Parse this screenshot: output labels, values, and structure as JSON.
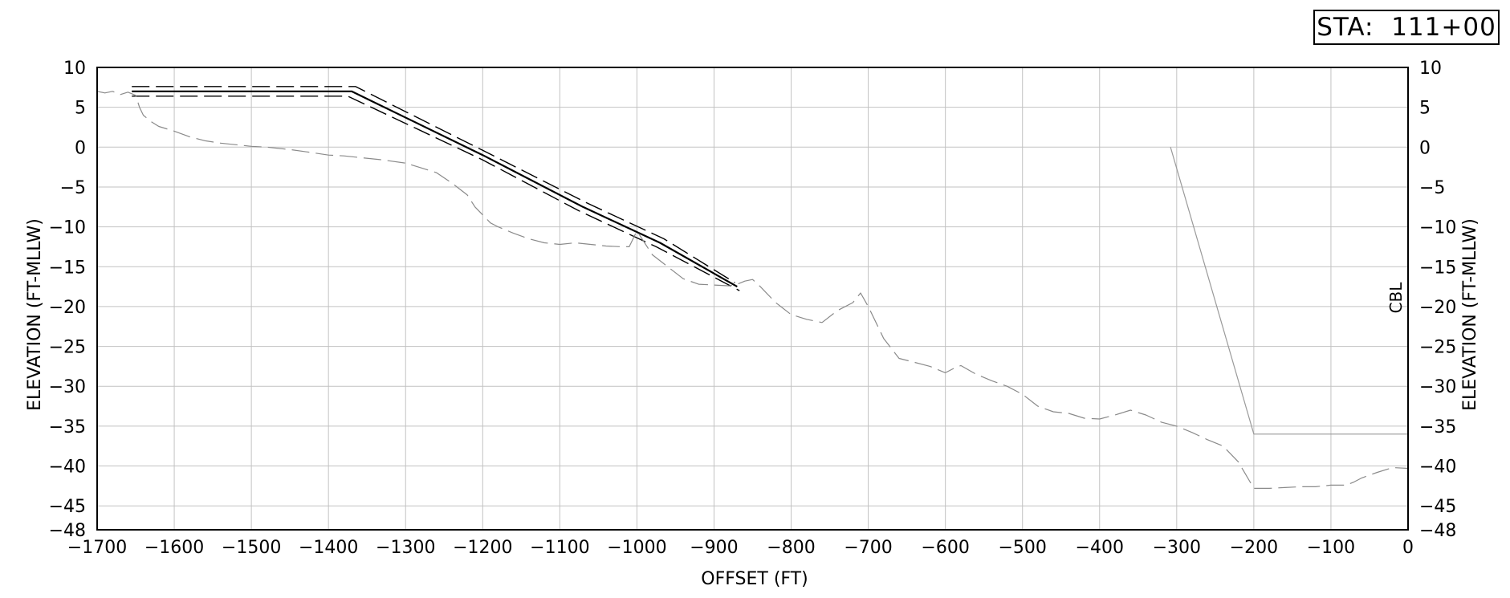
{
  "station_label": "STA:  111+00",
  "chart_data": {
    "type": "line",
    "xlabel": "OFFSET (FT)",
    "ylabel_left": "ELEVATION (FT-MLLW)",
    "ylabel_right": "ELEVATION (FT-MLLW)",
    "annotation": "CBL",
    "xlim": [
      -1700,
      0
    ],
    "ylim": [
      -48,
      10
    ],
    "x_ticks": [
      -1700,
      -1600,
      -1500,
      -1400,
      -1300,
      -1200,
      -1100,
      -1000,
      -900,
      -800,
      -700,
      -600,
      -500,
      -400,
      -300,
      -200,
      -100,
      0
    ],
    "x_tick_labels": [
      "−1700",
      "−1600",
      "−1500",
      "−1400",
      "−1300",
      "−1200",
      "−1100",
      "−1000",
      "−900",
      "−800",
      "−700",
      "−600",
      "−500",
      "−400",
      "−300",
      "−200",
      "−100",
      "0"
    ],
    "y_ticks": [
      10,
      5,
      0,
      -5,
      -10,
      -15,
      -20,
      -25,
      -30,
      -35,
      -40,
      -45,
      -48
    ],
    "y_tick_labels": [
      "10",
      "5",
      "0",
      "−5",
      "−10",
      "−15",
      "−20",
      "−25",
      "−30",
      "−35",
      "−40",
      "−45",
      "−48"
    ],
    "grid": true,
    "series": [
      {
        "style": "solid",
        "color": "#000000",
        "width": 2.2,
        "x": [
          -1655,
          -1370,
          -1200,
          -1070,
          -970,
          -870
        ],
        "y": [
          7,
          7,
          -1,
          -7.5,
          -12,
          -17.5
        ]
      },
      {
        "style": "dashed",
        "color": "#000000",
        "width": 1.4,
        "x": [
          -1655,
          -1365,
          -1200,
          -1065,
          -965,
          -873
        ],
        "y": [
          7.6,
          7.6,
          -0.4,
          -7.0,
          -11.5,
          -17.0
        ]
      },
      {
        "style": "dashed",
        "color": "#000000",
        "width": 1.4,
        "x": [
          -1655,
          -1375,
          -1200,
          -1075,
          -975,
          -867
        ],
        "y": [
          6.4,
          6.4,
          -1.6,
          -8.0,
          -12.5,
          -18.0
        ]
      },
      {
        "style": "dashed",
        "color": "#8a8a8a",
        "width": 1.2,
        "x": [
          -1700,
          -1690,
          -1680,
          -1670,
          -1660,
          -1650,
          -1645,
          -1640,
          -1630,
          -1620,
          -1600,
          -1580,
          -1560,
          -1540,
          -1520,
          -1500,
          -1480,
          -1450,
          -1420,
          -1400,
          -1380,
          -1360,
          -1330,
          -1300,
          -1280,
          -1260,
          -1240,
          -1220,
          -1210,
          -1200,
          -1190,
          -1180,
          -1160,
          -1140,
          -1120,
          -1100,
          -1080,
          -1060,
          -1040,
          -1020,
          -1010,
          -1000,
          -990,
          -980,
          -960,
          -940,
          -920,
          -900,
          -880,
          -870,
          -860,
          -850,
          -840,
          -820,
          -800,
          -780,
          -760,
          -740,
          -720,
          -710,
          -700,
          -690,
          -680,
          -660,
          -640,
          -620,
          -600,
          -590,
          -580,
          -560,
          -540,
          -520,
          -500,
          -480,
          -460,
          -440,
          -420,
          -400,
          -380,
          -360,
          -340,
          -320,
          -300,
          -280,
          -260,
          -240,
          -220,
          -200,
          -180,
          -160,
          -140,
          -120,
          -100,
          -80,
          -70,
          -60,
          -40,
          -20,
          0
        ],
        "y": [
          7,
          6.8,
          7,
          6.6,
          6.9,
          6.5,
          5,
          4,
          3.2,
          2.6,
          2.0,
          1.3,
          0.8,
          0.5,
          0.3,
          0.1,
          0,
          -0.3,
          -0.7,
          -1.0,
          -1.1,
          -1.3,
          -1.6,
          -2.0,
          -2.6,
          -3.2,
          -4.5,
          -6.0,
          -7.5,
          -8.5,
          -9.5,
          -10.0,
          -10.8,
          -11.5,
          -12.0,
          -12.2,
          -12.0,
          -12.2,
          -12.4,
          -12.5,
          -12.5,
          -10.5,
          -12.0,
          -13.5,
          -15.0,
          -16.5,
          -17.2,
          -17.3,
          -17.4,
          -17.2,
          -16.8,
          -16.6,
          -17.5,
          -19.5,
          -21.0,
          -21.6,
          -22.0,
          -20.5,
          -19.5,
          -18.3,
          -20.0,
          -22.0,
          -24.0,
          -26.5,
          -27.0,
          -27.5,
          -28.3,
          -27.8,
          -27.4,
          -28.5,
          -29.3,
          -30.0,
          -31.0,
          -32.5,
          -33.2,
          -33.4,
          -34.0,
          -34.1,
          -33.6,
          -33.0,
          -33.6,
          -34.5,
          -35.0,
          -35.8,
          -36.7,
          -37.5,
          -39.5,
          -42.8,
          -42.8,
          -42.7,
          -42.6,
          -42.6,
          -42.4,
          -42.4,
          -42.0,
          -41.5,
          -40.8,
          -40.2,
          -40.3
        ]
      },
      {
        "style": "solid",
        "color": "#9a9a9a",
        "width": 1.2,
        "x": [
          -308,
          -200,
          0
        ],
        "y": [
          0,
          -36,
          -36
        ]
      }
    ]
  }
}
